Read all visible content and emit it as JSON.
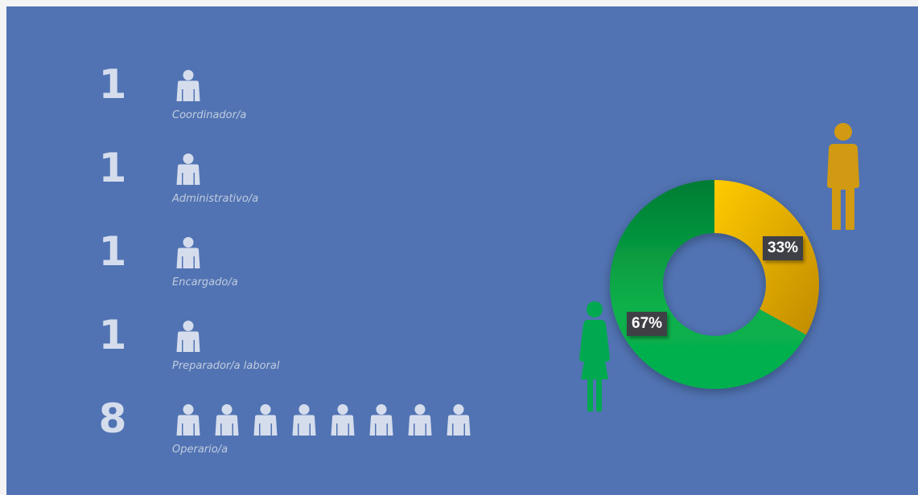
{
  "staff": [
    {
      "count": "1",
      "label": "Coordinador/a"
    },
    {
      "count": "1",
      "label": "Administrativo/a"
    },
    {
      "count": "1",
      "label": "Encargado/a"
    },
    {
      "count": "1",
      "label": "Preparador/a laboral"
    },
    {
      "count": "8",
      "label": "Operario/a"
    }
  ],
  "colors": {
    "background": "#5173b3",
    "person_icon": "#d5dded",
    "male": "#d19a12",
    "female": "#00a94f",
    "slice_yellow": "#f5b800",
    "slice_green": "#0db14b"
  },
  "chart_data": {
    "type": "pie",
    "variant": "donut",
    "slices": [
      {
        "value": 33,
        "label": "33%",
        "icon": "male-figure-icon",
        "color": "#f5b800"
      },
      {
        "value": 67,
        "label": "67%",
        "icon": "female-figure-icon",
        "color": "#0db14b"
      }
    ]
  }
}
